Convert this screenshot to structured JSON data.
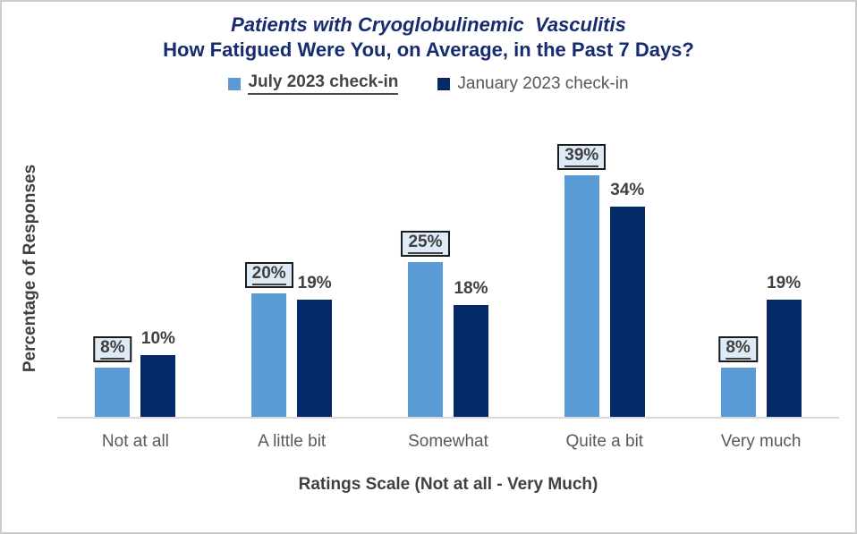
{
  "title": {
    "line1": "Patients with Cryoglobulinemic  Vasculitis",
    "line2": "How Fatigued Were You, on Average, in the Past 7 Days?"
  },
  "legend": {
    "items": [
      {
        "label": "July 2023 check-in",
        "color": "#5b9bd5",
        "emphasized": true
      },
      {
        "label": "January 2023 check-in",
        "color": "#042a68",
        "emphasized": false
      }
    ]
  },
  "chart_data": {
    "type": "bar",
    "categories": [
      "Not at all",
      "A little bit",
      "Somewhat",
      "Quite a bit",
      "Very much"
    ],
    "series": [
      {
        "name": "July 2023 check-in",
        "color": "#5b9bd5",
        "values": [
          8,
          20,
          25,
          39,
          8
        ],
        "labels": [
          "8%",
          "20%",
          "25%",
          "39%",
          "8%"
        ],
        "label_style": "boxed-underlined"
      },
      {
        "name": "January 2023 check-in",
        "color": "#042a68",
        "values": [
          10,
          19,
          18,
          34,
          19
        ],
        "labels": [
          "10%",
          "19%",
          "18%",
          "34%",
          "19%"
        ],
        "label_style": "plain"
      }
    ],
    "title": "Patients with Cryoglobulinemic Vasculitis — How Fatigued Were You, on Average, in the Past 7 Days?",
    "xlabel": "Ratings Scale (Not at all - Very Much)",
    "ylabel": "Percentage of Responses",
    "ylim": [
      0,
      48
    ],
    "grid": false,
    "legend_position": "top",
    "label_box_background": "#deeaf6",
    "axis_line_color": "#d9d9d9"
  }
}
